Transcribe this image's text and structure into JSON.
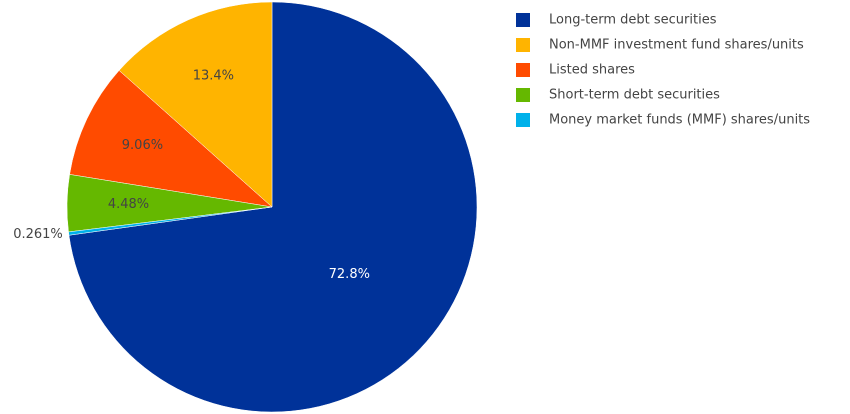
{
  "chart_data": {
    "type": "pie",
    "categories": [
      "Long-term debt securities",
      "Non-MMF investment fund shares/units",
      "Listed shares",
      "Short-term debt securities",
      "Money market funds (MMF) shares/units"
    ],
    "values": [
      72.8,
      13.4,
      9.06,
      4.48,
      0.261
    ],
    "value_labels": [
      "72.8%",
      "13.4%",
      "9.06%",
      "4.48%",
      "0.261%"
    ],
    "colors": [
      "#003299",
      "#ffb400",
      "#ff4b00",
      "#65b800",
      "#00b1ea"
    ],
    "legend": "top-right"
  }
}
